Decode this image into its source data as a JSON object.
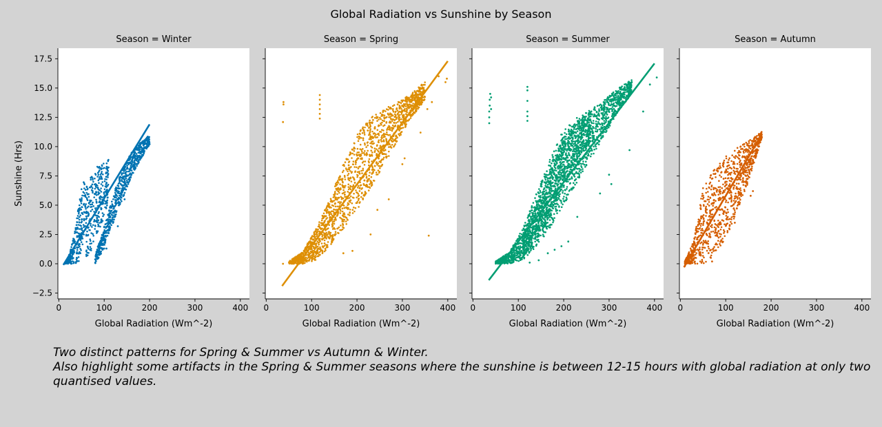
{
  "figure": {
    "title": "Global Radiation vs Sunshine by Season",
    "caption_line1": " Two distinct patterns for Spring & Summer vs Autumn & Winter.",
    "caption_line2": " Also highlight some artifacts in the Spring & Summer seasons where the sunshine is between 12-15 hours with global radiation at only two quantised values."
  },
  "chart_data": [
    {
      "type": "scatter",
      "title": "Season = Winter",
      "xlabel": "Global Radiation (Wm^-2)",
      "ylabel": "Sunshine (Hrs)",
      "xlim": [
        -2,
        420
      ],
      "ylim": [
        -3,
        18.4
      ],
      "xticks": [
        0,
        100,
        200,
        300,
        400
      ],
      "yticks": [
        -2.5,
        0.0,
        2.5,
        5.0,
        7.5,
        10.0,
        12.5,
        15.0,
        17.5
      ],
      "color": "#0173b2",
      "regression_line": {
        "x": [
          10,
          200
        ],
        "y": [
          -0.1,
          11.9
        ]
      },
      "clusters": [
        {
          "x": [
            12,
            20,
            28,
            36,
            44,
            52,
            60
          ],
          "y_low": [
            0,
            0,
            0,
            0,
            0.2,
            1.5,
            3.0
          ],
          "y_high": [
            0,
            0.5,
            1.5,
            3.0,
            5.0,
            6.8,
            7.3
          ]
        },
        {
          "x": [
            60,
            70,
            80,
            90,
            100,
            110
          ],
          "y_low": [
            0.3,
            1.0,
            2.0,
            3.0,
            4.0,
            5.5
          ],
          "y_high": [
            7.0,
            7.5,
            8.2,
            8.5,
            8.8,
            9.0
          ]
        },
        {
          "x": [
            80,
            95,
            110,
            125,
            140,
            155,
            170,
            185,
            200
          ],
          "y_low": [
            0,
            1.0,
            2.5,
            4.0,
            5.5,
            7.0,
            8.2,
            9.2,
            10.2
          ],
          "y_high": [
            0.8,
            2.5,
            4.5,
            6.5,
            8.0,
            9.2,
            10.0,
            10.5,
            11.0
          ]
        }
      ],
      "outliers": [
        [
          85,
          0.6
        ],
        [
          100,
          1.3
        ],
        [
          105,
          1.3
        ],
        [
          130,
          3.2
        ],
        [
          145,
          5.5
        ],
        [
          200,
          10.2
        ]
      ]
    },
    {
      "type": "scatter",
      "title": "Season = Spring",
      "xlabel": "Global Radiation (Wm^-2)",
      "ylabel": "",
      "xlim": [
        -2,
        420
      ],
      "ylim": [
        -3,
        18.4
      ],
      "xticks": [
        0,
        100,
        200,
        300,
        400
      ],
      "yticks": [
        -2.5,
        0.0,
        2.5,
        5.0,
        7.5,
        10.0,
        12.5,
        15.0,
        17.5
      ],
      "color": "#de8f05",
      "regression_line": {
        "x": [
          35,
          400
        ],
        "y": [
          -1.9,
          17.3
        ]
      },
      "clusters": [
        {
          "x": [
            50,
            80,
            110,
            140,
            170,
            200,
            230,
            260,
            290,
            320,
            350
          ],
          "y_low": [
            0,
            0,
            0.3,
            1.5,
            3.0,
            4.5,
            6.5,
            8.5,
            10.5,
            12.5,
            14.0
          ],
          "y_high": [
            0.2,
            1.0,
            3.0,
            5.5,
            8.5,
            11.0,
            12.5,
            13.2,
            13.8,
            14.5,
            15.6
          ]
        }
      ],
      "outliers": [
        [
          38,
          13.6
        ],
        [
          38,
          13.8
        ],
        [
          37,
          12.1
        ],
        [
          118,
          12.4
        ],
        [
          118,
          12.8
        ],
        [
          118,
          13.2
        ],
        [
          118,
          13.6
        ],
        [
          118,
          14.0
        ],
        [
          118,
          14.4
        ],
        [
          37,
          0.0
        ],
        [
          395,
          15.5
        ],
        [
          398,
          15.8
        ],
        [
          380,
          16.0
        ],
        [
          358,
          2.4
        ],
        [
          245,
          4.6
        ],
        [
          230,
          2.5
        ],
        [
          190,
          1.1
        ],
        [
          170,
          0.9
        ],
        [
          300,
          8.5
        ],
        [
          305,
          9.0
        ],
        [
          270,
          5.5
        ],
        [
          340,
          11.2
        ],
        [
          355,
          13.2
        ],
        [
          330,
          13.0
        ],
        [
          365,
          13.8
        ]
      ]
    },
    {
      "type": "scatter",
      "title": "Season = Summer",
      "xlabel": "Global Radiation (Wm^-2)",
      "ylabel": "",
      "xlim": [
        -2,
        420
      ],
      "ylim": [
        -3,
        18.4
      ],
      "xticks": [
        0,
        100,
        200,
        300,
        400
      ],
      "yticks": [
        -2.5,
        0.0,
        2.5,
        5.0,
        7.5,
        10.0,
        12.5,
        15.0,
        17.5
      ],
      "color": "#029e73",
      "regression_line": {
        "x": [
          35,
          400
        ],
        "y": [
          -1.4,
          17.1
        ]
      },
      "clusters": [
        {
          "x": [
            50,
            80,
            110,
            140,
            170,
            200,
            230,
            260,
            290,
            320,
            350
          ],
          "y_low": [
            0,
            0,
            0.3,
            1.5,
            3.0,
            5.0,
            7.0,
            9.0,
            11.0,
            13.0,
            14.5
          ],
          "y_high": [
            0.2,
            1.0,
            3.0,
            6.0,
            9.0,
            11.5,
            12.5,
            13.2,
            14.0,
            15.0,
            15.7
          ]
        },
        {
          "x": [
            110,
            140,
            170,
            200,
            230,
            260
          ],
          "y_low": [
            0.5,
            2.0,
            4.0,
            6.5,
            9.0,
            10.5
          ],
          "y_high": [
            2.5,
            5.0,
            8.0,
            11.0,
            12.3,
            13.0
          ]
        }
      ],
      "outliers": [
        [
          36,
          12.0
        ],
        [
          36,
          12.5
        ],
        [
          36,
          13.0
        ],
        [
          37,
          13.5
        ],
        [
          37,
          14.0
        ],
        [
          38,
          14.5
        ],
        [
          40,
          13.2
        ],
        [
          40,
          14.2
        ],
        [
          120,
          12.2
        ],
        [
          120,
          12.6
        ],
        [
          120,
          13.0
        ],
        [
          120,
          13.9
        ],
        [
          120,
          14.8
        ],
        [
          120,
          15.1
        ],
        [
          405,
          15.9
        ],
        [
          390,
          15.3
        ],
        [
          375,
          13.0
        ],
        [
          345,
          9.7
        ],
        [
          300,
          7.6
        ],
        [
          305,
          6.8
        ],
        [
          280,
          6.0
        ],
        [
          230,
          4.0
        ],
        [
          210,
          1.9
        ],
        [
          195,
          1.5
        ],
        [
          180,
          1.2
        ],
        [
          165,
          0.9
        ],
        [
          145,
          0.3
        ],
        [
          125,
          0.1
        ]
      ]
    },
    {
      "type": "scatter",
      "title": "Season = Autumn",
      "xlabel": "Global Radiation (Wm^-2)",
      "ylabel": "",
      "xlim": [
        -2,
        420
      ],
      "ylim": [
        -3,
        18.4
      ],
      "xticks": [
        0,
        100,
        200,
        300,
        400
      ],
      "yticks": [
        -2.5,
        0.0,
        2.5,
        5.0,
        7.5,
        10.0,
        12.5,
        15.0,
        17.5
      ],
      "color": "#d55e00",
      "regression_line": {
        "x": [
          8,
          180
        ],
        "y": [
          -0.3,
          11.1
        ]
      },
      "clusters": [
        {
          "x": [
            10,
            30,
            50,
            70,
            90,
            110,
            130,
            150,
            170,
            180
          ],
          "y_low": [
            0,
            0,
            0,
            0.5,
            1.5,
            3.0,
            5.0,
            7.0,
            9.5,
            10.8
          ],
          "y_high": [
            0.2,
            2.0,
            6.5,
            7.8,
            8.8,
            9.5,
            10.0,
            10.5,
            11.0,
            11.3
          ]
        }
      ],
      "outliers": [
        [
          10,
          -0.2
        ],
        [
          70,
          0.2
        ],
        [
          120,
          3.5
        ],
        [
          160,
          6.2
        ],
        [
          155,
          5.8
        ]
      ]
    }
  ]
}
